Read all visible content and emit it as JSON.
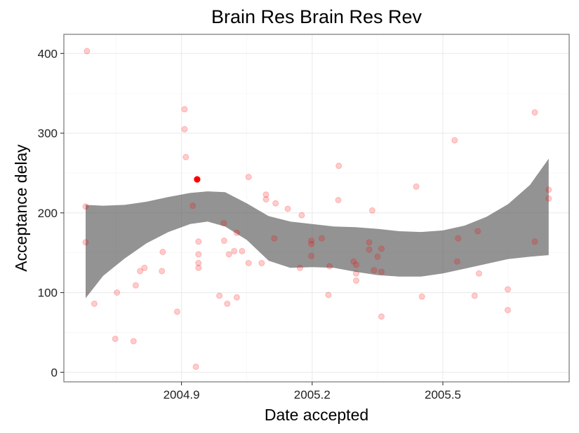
{
  "chart_data": {
    "type": "scatter",
    "title": "Brain Res Brain Res Rev",
    "xlabel": "Date accepted",
    "ylabel": "Acceptance delay",
    "xlim": [
      2004.63,
      2005.79
    ],
    "ylim": [
      -12,
      424
    ],
    "x_ticks": [
      {
        "value": 2004.9,
        "label": "2004.9"
      },
      {
        "value": 2005.2,
        "label": "2005.2"
      },
      {
        "value": 2005.5,
        "label": "2005.5"
      }
    ],
    "y_ticks": [
      {
        "value": 0,
        "label": "0"
      },
      {
        "value": 100,
        "label": "100"
      },
      {
        "value": 200,
        "label": "200"
      },
      {
        "value": 300,
        "label": "300"
      },
      {
        "value": 400,
        "label": "400"
      }
    ],
    "grid": true,
    "point_color": "#ff0000",
    "band_color": "#595959",
    "highlight_point": {
      "x": 2004.936,
      "y": 242
    },
    "points": [
      [
        2004.683,
        403
      ],
      [
        2004.68,
        208
      ],
      [
        2004.68,
        163
      ],
      [
        2004.7,
        86
      ],
      [
        2004.748,
        42
      ],
      [
        2004.752,
        100
      ],
      [
        2004.79,
        39
      ],
      [
        2004.795,
        109
      ],
      [
        2004.805,
        127
      ],
      [
        2004.815,
        131
      ],
      [
        2004.857,
        151
      ],
      [
        2004.855,
        127
      ],
      [
        2004.89,
        76
      ],
      [
        2004.907,
        330
      ],
      [
        2004.907,
        305
      ],
      [
        2004.91,
        270
      ],
      [
        2004.926,
        209
      ],
      [
        2004.939,
        164
      ],
      [
        2004.939,
        148
      ],
      [
        2004.939,
        137
      ],
      [
        2004.939,
        131
      ],
      [
        2004.933,
        7
      ],
      [
        2004.987,
        96
      ],
      [
        2004.997,
        187
      ],
      [
        2004.998,
        165
      ],
      [
        2005.005,
        86
      ],
      [
        2005.009,
        148
      ],
      [
        2005.021,
        152
      ],
      [
        2005.027,
        175
      ],
      [
        2005.027,
        94
      ],
      [
        2005.039,
        152
      ],
      [
        2005.054,
        245
      ],
      [
        2005.054,
        137
      ],
      [
        2005.084,
        137
      ],
      [
        2005.094,
        223
      ],
      [
        2005.094,
        217
      ],
      [
        2005.113,
        168
      ],
      [
        2005.116,
        212
      ],
      [
        2005.144,
        205
      ],
      [
        2005.172,
        131
      ],
      [
        2005.176,
        197
      ],
      [
        2005.198,
        165
      ],
      [
        2005.198,
        161
      ],
      [
        2005.198,
        146
      ],
      [
        2005.222,
        168
      ],
      [
        2005.237,
        97
      ],
      [
        2005.24,
        133
      ],
      [
        2005.261,
        259
      ],
      [
        2005.26,
        216
      ],
      [
        2005.295,
        139
      ],
      [
        2005.301,
        135
      ],
      [
        2005.301,
        124
      ],
      [
        2005.301,
        115
      ],
      [
        2005.331,
        163
      ],
      [
        2005.331,
        154
      ],
      [
        2005.338,
        203
      ],
      [
        2005.342,
        128
      ],
      [
        2005.35,
        145
      ],
      [
        2005.359,
        155
      ],
      [
        2005.359,
        126
      ],
      [
        2005.359,
        70
      ],
      [
        2005.439,
        233
      ],
      [
        2005.452,
        95
      ],
      [
        2005.527,
        291
      ],
      [
        2005.535,
        168
      ],
      [
        2005.533,
        139
      ],
      [
        2005.573,
        96
      ],
      [
        2005.58,
        177
      ],
      [
        2005.583,
        124
      ],
      [
        2005.649,
        104
      ],
      [
        2005.649,
        78
      ],
      [
        2005.711,
        326
      ],
      [
        2005.711,
        164
      ],
      [
        2005.743,
        229
      ],
      [
        2005.743,
        218
      ]
    ],
    "band": {
      "x": [
        2004.68,
        2004.72,
        2004.77,
        2004.82,
        2004.87,
        2004.92,
        2004.96,
        2005.0,
        2005.05,
        2005.1,
        2005.15,
        2005.2,
        2005.25,
        2005.3,
        2005.35,
        2005.4,
        2005.45,
        2005.5,
        2005.55,
        2005.6,
        2005.65,
        2005.7,
        2005.743
      ],
      "upper": [
        210,
        209,
        210,
        214,
        220,
        225,
        227,
        226,
        212,
        196,
        189,
        186,
        183,
        182,
        180,
        177,
        176,
        178,
        184,
        195,
        211,
        235,
        268
      ],
      "lower": [
        93,
        121,
        143,
        162,
        176,
        186,
        189,
        183,
        166,
        140,
        131,
        132,
        131,
        126,
        122,
        120,
        120,
        124,
        130,
        136,
        142,
        145,
        147
      ]
    }
  }
}
